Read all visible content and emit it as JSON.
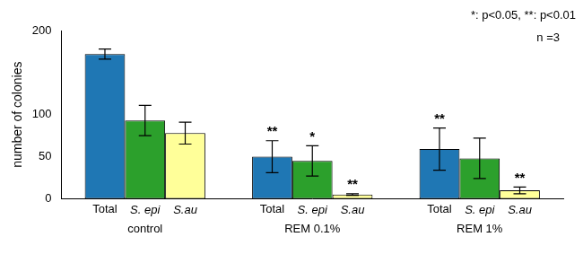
{
  "chart_data": {
    "type": "bar",
    "categories": [
      "control",
      "REM 0.1%",
      "REM 1%"
    ],
    "series": [
      {
        "name": "Total",
        "color": "#1f77b4",
        "values": [
          172,
          50,
          59
        ],
        "errors": [
          6,
          19,
          25
        ],
        "significance": [
          null,
          "**",
          "**"
        ]
      },
      {
        "name": "S. epi",
        "color": "#2ca02c",
        "values": [
          93,
          45,
          48
        ],
        "errors": [
          18,
          18,
          24
        ],
        "significance": [
          null,
          "*",
          null
        ]
      },
      {
        "name": "S.au",
        "color": "#ffff99",
        "values": [
          78,
          5,
          10
        ],
        "errors": [
          13,
          1,
          4
        ],
        "significance": [
          null,
          "**",
          "**"
        ]
      }
    ],
    "ylim": [
      0,
      200
    ],
    "yticks": [
      0,
      50,
      100,
      200
    ],
    "y_label": "number of colonies",
    "annotations": [
      "*: p<0.05, **: p<0.01",
      "n =3"
    ],
    "grid": false
  }
}
